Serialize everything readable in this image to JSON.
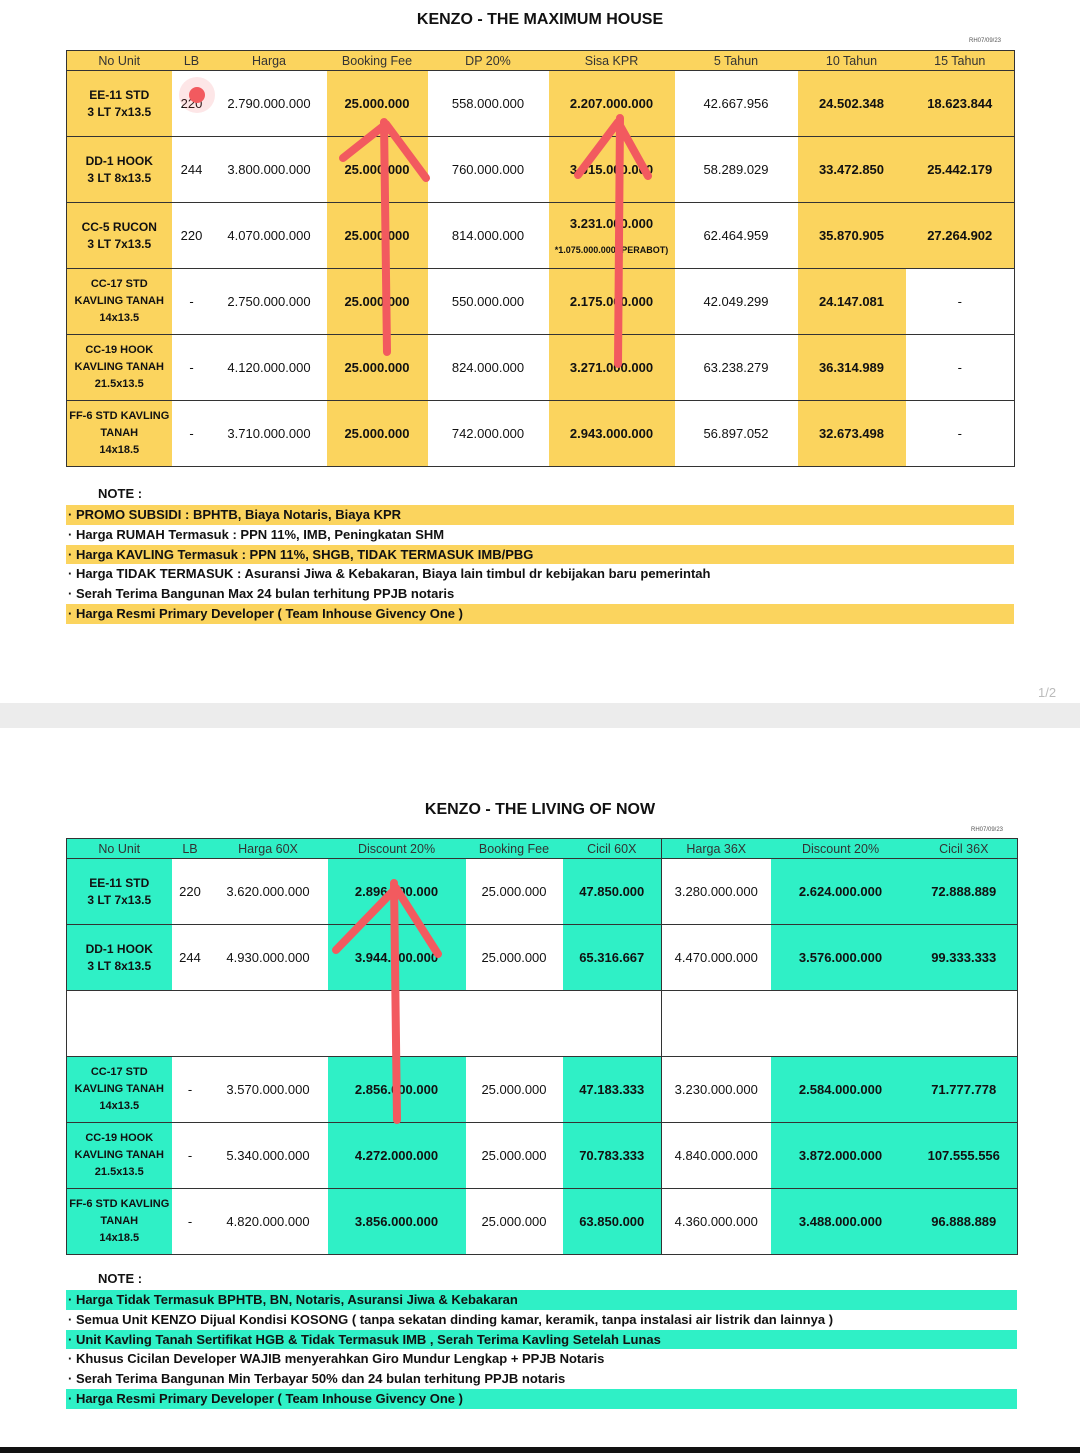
{
  "page1": {
    "title": "KENZO - THE MAXIMUM HOUSE",
    "code": "RH07/09/23",
    "headers": [
      "No Unit",
      "LB",
      "Harga",
      "Booking Fee",
      "DP 20%",
      "Sisa KPR",
      "5 Tahun",
      "10 Tahun",
      "15 Tahun"
    ],
    "rows": [
      {
        "unit": [
          "EE-11 STD",
          "3 LT 7x13.5"
        ],
        "cells": [
          "220",
          "2.790.000.000",
          "25.000.000",
          "558.000.000",
          "2.207.000.000",
          "42.667.956",
          "24.502.348",
          "18.623.844"
        ]
      },
      {
        "unit": [
          "DD-1 HOOK",
          "3 LT 8x13.5"
        ],
        "cells": [
          "244",
          "3.800.000.000",
          "25.000.000",
          "760.000.000",
          "3.015.000.000",
          "58.289.029",
          "33.472.850",
          "25.442.179"
        ]
      },
      {
        "unit": [
          "CC-5 RUCON",
          "3 LT 7x13.5"
        ],
        "cells": [
          "220",
          "4.070.000.000",
          "25.000.000",
          "814.000.000",
          "3.231.000.000",
          "62.464.959",
          "35.870.905",
          "27.264.902"
        ],
        "sisa_note": "*1.075.000.000 (PERABOT)"
      },
      {
        "unit": [
          "CC-17 STD",
          "KAVLING TANAH",
          "14x13.5"
        ],
        "cells": [
          "-",
          "2.750.000.000",
          "25.000.000",
          "550.000.000",
          "2.175.000.000",
          "42.049.299",
          "24.147.081",
          "-"
        ]
      },
      {
        "unit": [
          "CC-19 HOOK",
          "KAVLING TANAH",
          "21.5x13.5"
        ],
        "cells": [
          "-",
          "4.120.000.000",
          "25.000.000",
          "824.000.000",
          "3.271.000.000",
          "63.238.279",
          "36.314.989",
          "-"
        ]
      },
      {
        "unit": [
          "FF-6 STD KAVLING",
          "TANAH",
          "14x18.5"
        ],
        "cells": [
          "-",
          "3.710.000.000",
          "25.000.000",
          "742.000.000",
          "2.943.000.000",
          "56.897.052",
          "32.673.498",
          "-"
        ]
      }
    ],
    "note_title": "NOTE :",
    "notes": [
      {
        "text": "· PROMO SUBSIDI : BPHTB, Biaya Notaris, Biaya KPR",
        "hl": true
      },
      {
        "text": "· Harga RUMAH Termasuk : PPN 11%, IMB, Peningkatan SHM",
        "hl": false
      },
      {
        "text": "· Harga KAVLING Termasuk : PPN 11%, SHGB, TIDAK TERMASUK IMB/PBG",
        "hl": true
      },
      {
        "text": "· Harga TIDAK TERMASUK : Asuransi Jiwa & Kebakaran, Biaya lain timbul dr kebijakan baru pemerintah",
        "hl": false
      },
      {
        "text": "· Serah Terima Bangunan Max 24 bulan terhitung PPJB notaris",
        "hl": false
      },
      {
        "text": "· Harga Resmi Primary Developer ( Team Inhouse Givency One )",
        "hl": true
      }
    ]
  },
  "page_indicator": "1/2",
  "page2": {
    "title": "KENZO - THE LIVING OF NOW",
    "code": "RH07/09/23",
    "headers": [
      "No Unit",
      "LB",
      "Harga 60X",
      "Discount 20%",
      "Booking Fee",
      "Cicil 60X",
      "Harga 36X",
      "Discount 20%",
      "Cicil 36X"
    ],
    "rows": [
      {
        "unit": [
          "EE-11 STD",
          "3 LT 7x13.5"
        ],
        "cells": [
          "220",
          "3.620.000.000",
          "2.896.000.000",
          "25.000.000",
          "47.850.000",
          "3.280.000.000",
          "2.624.000.000",
          "72.888.889"
        ]
      },
      {
        "unit": [
          "DD-1 HOOK",
          "3 LT 8x13.5"
        ],
        "cells": [
          "244",
          "4.930.000.000",
          "3.944.000.000",
          "25.000.000",
          "65.316.667",
          "4.470.000.000",
          "3.576.000.000",
          "99.333.333"
        ]
      },
      {
        "unit": [],
        "cells": [],
        "empty": true
      },
      {
        "unit": [
          "CC-17 STD",
          "KAVLING TANAH",
          "14x13.5"
        ],
        "cells": [
          "-",
          "3.570.000.000",
          "2.856.000.000",
          "25.000.000",
          "47.183.333",
          "3.230.000.000",
          "2.584.000.000",
          "71.777.778"
        ]
      },
      {
        "unit": [
          "CC-19 HOOK",
          "KAVLING TANAH",
          "21.5x13.5"
        ],
        "cells": [
          "-",
          "5.340.000.000",
          "4.272.000.000",
          "25.000.000",
          "70.783.333",
          "4.840.000.000",
          "3.872.000.000",
          "107.555.556"
        ]
      },
      {
        "unit": [
          "FF-6 STD KAVLING",
          "TANAH",
          "14x18.5"
        ],
        "cells": [
          "-",
          "4.820.000.000",
          "3.856.000.000",
          "25.000.000",
          "63.850.000",
          "4.360.000.000",
          "3.488.000.000",
          "96.888.889"
        ]
      }
    ],
    "note_title": "NOTE :",
    "notes": [
      {
        "text": "· Harga Tidak Termasuk BPHTB, BN, Notaris, Asuransi Jiwa & Kebakaran",
        "hl": true
      },
      {
        "text": "· Semua Unit KENZO Dijual Kondisi KOSONG ( tanpa sekatan dinding kamar, keramik, tanpa instalasi air listrik dan lainnya )",
        "hl": false
      },
      {
        "text": "· Unit Kavling Tanah Sertifikat HGB & Tidak Termasuk IMB , Serah Terima Kavling Setelah Lunas",
        "hl": true
      },
      {
        "text": "· Khusus Cicilan Developer WAJIB menyerahkan Giro Mundur Lengkap + PPJB Notaris",
        "hl": false
      },
      {
        "text": "· Serah Terima Bangunan Min Terbayar 50% dan 24 bulan terhitung PPJB notaris",
        "hl": false
      },
      {
        "text": "· Harga Resmi Primary Developer ( Team Inhouse Givency One )",
        "hl": true
      }
    ]
  },
  "colors": {
    "yellow": "#fbd45e",
    "teal": "#2ff0c6",
    "annotation_red": "#f25a5f"
  }
}
